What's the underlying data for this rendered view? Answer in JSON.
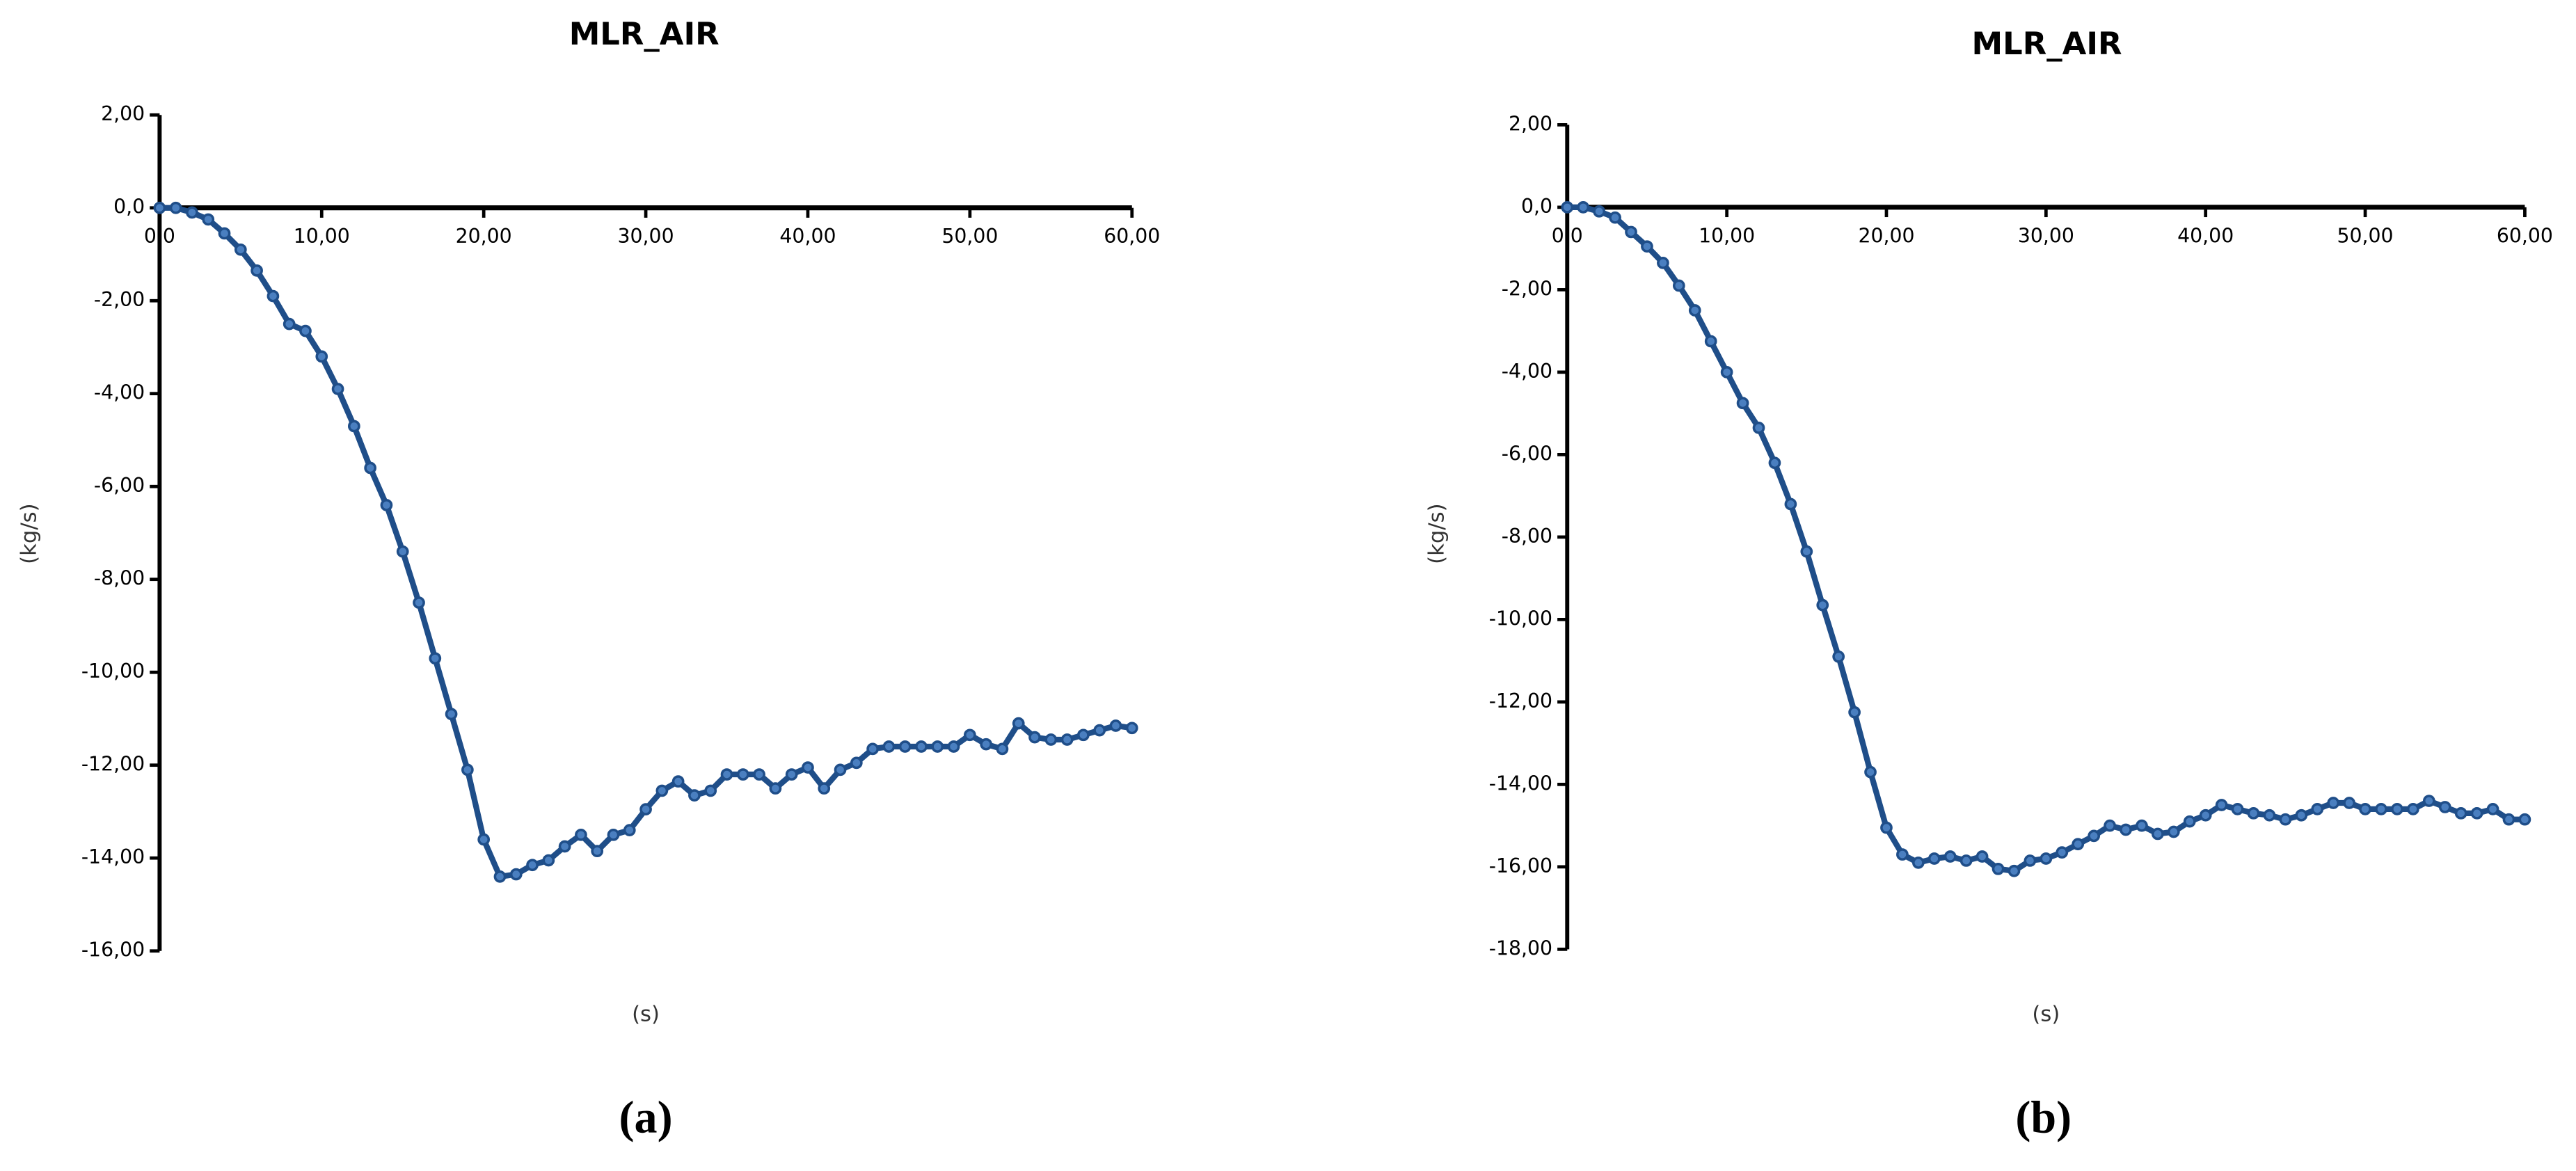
{
  "chart_data": [
    {
      "type": "line",
      "title": "MLR_AIR",
      "y_label": "(kg/s)",
      "x_label": "(s)",
      "caption": "(a)",
      "xlim": [
        0,
        60
      ],
      "ylim": [
        -16,
        2
      ],
      "xticks": [
        {
          "value": 0,
          "label": "0,0"
        },
        {
          "value": 10,
          "label": "10,00"
        },
        {
          "value": 20,
          "label": "20,00"
        },
        {
          "value": 30,
          "label": "30,00"
        },
        {
          "value": 40,
          "label": "40,00"
        },
        {
          "value": 50,
          "label": "50,00"
        },
        {
          "value": 60,
          "label": "60,00"
        }
      ],
      "yticks": [
        {
          "value": 2,
          "label": "2,00"
        },
        {
          "value": 0,
          "label": "0,0"
        },
        {
          "value": -2,
          "label": "-2,00"
        },
        {
          "value": -4,
          "label": "-4,00"
        },
        {
          "value": -6,
          "label": "-6,00"
        },
        {
          "value": -8,
          "label": "-8,00"
        },
        {
          "value": -10,
          "label": "-10,00"
        },
        {
          "value": -12,
          "label": "-12,00"
        },
        {
          "value": -14,
          "label": "-14,00"
        },
        {
          "value": -16,
          "label": "-16,00"
        }
      ],
      "x": [
        0,
        1,
        2,
        3,
        4,
        5,
        6,
        7,
        8,
        9,
        10,
        11,
        12,
        13,
        14,
        15,
        16,
        17,
        18,
        19,
        20,
        21,
        22,
        23,
        24,
        25,
        26,
        27,
        28,
        29,
        30,
        31,
        32,
        33,
        34,
        35,
        36,
        37,
        38,
        39,
        40,
        41,
        42,
        43,
        44,
        45,
        46,
        47,
        48,
        49,
        50,
        51,
        52,
        53,
        54,
        55,
        56,
        57,
        58,
        59,
        60
      ],
      "series": [
        {
          "color": "#1f4e89",
          "values": [
            0,
            0,
            -0.1,
            -0.25,
            -0.55,
            -0.9,
            -1.35,
            -1.9,
            -2.5,
            -2.65,
            -3.2,
            -3.9,
            -4.7,
            -5.6,
            -6.4,
            -7.4,
            -8.5,
            -9.7,
            -10.9,
            -12.1,
            -13.6,
            -14.4,
            -14.35,
            -14.15,
            -14.05,
            -13.75,
            -13.5,
            -13.85,
            -13.5,
            -13.4,
            -12.95,
            -12.55,
            -12.35,
            -12.65,
            -12.55,
            -12.2,
            -12.2,
            -12.2,
            -12.5,
            -12.2,
            -12.05,
            -12.5,
            -12.1,
            -11.95,
            -11.65,
            -11.6,
            -11.6,
            -11.6,
            -11.6,
            -11.6,
            -11.35,
            -11.55,
            -11.65,
            -11.1,
            -11.4,
            -11.45,
            -11.45,
            -11.35,
            -11.25,
            -11.15,
            -11.2
          ]
        }
      ]
    },
    {
      "type": "line",
      "title": "MLR_AIR",
      "y_label": "(kg/s)",
      "x_label": "(s)",
      "caption": "(b)",
      "xlim": [
        0,
        60
      ],
      "ylim": [
        -18,
        2
      ],
      "xticks": [
        {
          "value": 0,
          "label": "0,0"
        },
        {
          "value": 10,
          "label": "10,00"
        },
        {
          "value": 20,
          "label": "20,00"
        },
        {
          "value": 30,
          "label": "30,00"
        },
        {
          "value": 40,
          "label": "40,00"
        },
        {
          "value": 50,
          "label": "50,00"
        },
        {
          "value": 60,
          "label": "60,00"
        }
      ],
      "yticks": [
        {
          "value": 2,
          "label": "2,00"
        },
        {
          "value": 0,
          "label": "0,0"
        },
        {
          "value": -2,
          "label": "-2,00"
        },
        {
          "value": -4,
          "label": "-4,00"
        },
        {
          "value": -6,
          "label": "-6,00"
        },
        {
          "value": -8,
          "label": "-8,00"
        },
        {
          "value": -10,
          "label": "-10,00"
        },
        {
          "value": -12,
          "label": "-12,00"
        },
        {
          "value": -14,
          "label": "-14,00"
        },
        {
          "value": -16,
          "label": "-16,00"
        },
        {
          "value": -18,
          "label": "-18,00"
        }
      ],
      "x": [
        0,
        1,
        2,
        3,
        4,
        5,
        6,
        7,
        8,
        9,
        10,
        11,
        12,
        13,
        14,
        15,
        16,
        17,
        18,
        19,
        20,
        21,
        22,
        23,
        24,
        25,
        26,
        27,
        28,
        29,
        30,
        31,
        32,
        33,
        34,
        35,
        36,
        37,
        38,
        39,
        40,
        41,
        42,
        43,
        44,
        45,
        46,
        47,
        48,
        49,
        50,
        51,
        52,
        53,
        54,
        55,
        56,
        57,
        58,
        59,
        60
      ],
      "series": [
        {
          "color": "#1f4e89",
          "values": [
            0,
            0,
            -0.1,
            -0.25,
            -0.6,
            -0.95,
            -1.35,
            -1.9,
            -2.5,
            -3.25,
            -4.0,
            -4.75,
            -5.35,
            -6.2,
            -7.2,
            -8.35,
            -9.65,
            -10.9,
            -12.25,
            -13.7,
            -15.05,
            -15.7,
            -15.9,
            -15.8,
            -15.75,
            -15.85,
            -15.75,
            -16.05,
            -16.1,
            -15.85,
            -15.8,
            -15.65,
            -15.45,
            -15.25,
            -15.0,
            -15.1,
            -15.0,
            -15.2,
            -15.15,
            -14.9,
            -14.75,
            -14.5,
            -14.6,
            -14.7,
            -14.75,
            -14.85,
            -14.75,
            -14.6,
            -14.45,
            -14.45,
            -14.6,
            -14.6,
            -14.6,
            -14.6,
            -14.4,
            -14.55,
            -14.7,
            -14.7,
            -14.6,
            -14.85,
            -14.85
          ]
        }
      ]
    }
  ]
}
